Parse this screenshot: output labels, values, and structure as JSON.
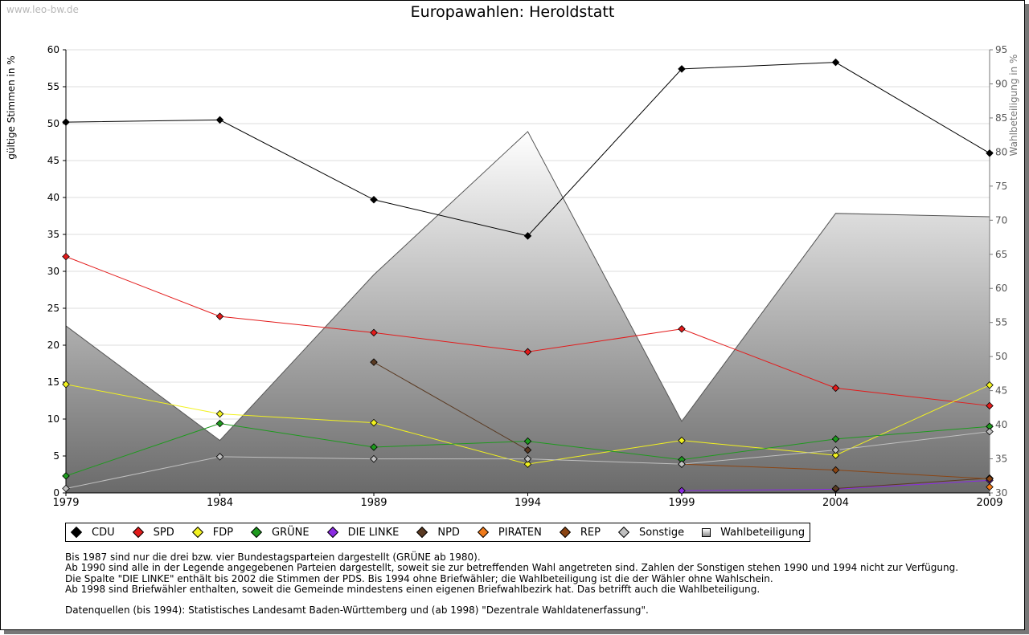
{
  "watermark": "www.leo-bw.de",
  "chart_data": {
    "type": "line",
    "title": "Europawahlen: Heroldstatt",
    "ylabel": "gültige Stimmen in %",
    "y2label": "Wahlbeteiligung in %",
    "x": [
      "1979",
      "1984",
      "1989",
      "1994",
      "1999",
      "2004",
      "2009"
    ],
    "ylim": [
      0,
      60
    ],
    "yticks": [
      "0",
      "5",
      "10",
      "15",
      "20",
      "25",
      "30",
      "35",
      "40",
      "45",
      "50",
      "55",
      "60"
    ],
    "y2lim": [
      30,
      95
    ],
    "y2ticks": [
      "30",
      "35",
      "40",
      "45",
      "50",
      "55",
      "60",
      "65",
      "70",
      "75",
      "80",
      "85",
      "90",
      "95"
    ],
    "grid": true,
    "series": [
      {
        "name": "CDU",
        "color": "#000000",
        "values": [
          50.2,
          50.5,
          39.7,
          34.8,
          57.4,
          58.3,
          46.0
        ]
      },
      {
        "name": "SPD",
        "color": "#e31b1b",
        "values": [
          32.0,
          23.9,
          21.7,
          19.1,
          22.2,
          14.2,
          11.8
        ]
      },
      {
        "name": "FDP",
        "color": "#f2f21f",
        "values": [
          14.7,
          10.7,
          9.5,
          3.9,
          7.1,
          5.1,
          14.6
        ]
      },
      {
        "name": "GRÜNE",
        "color": "#1e9a1e",
        "values": [
          2.3,
          9.4,
          6.2,
          7.0,
          4.5,
          7.3,
          9.0
        ]
      },
      {
        "name": "DIE LINKE",
        "color": "#8b2be2",
        "values": [
          null,
          null,
          null,
          null,
          0.3,
          0.5,
          1.7
        ]
      },
      {
        "name": "NPD",
        "color": "#5a3a22",
        "values": [
          null,
          null,
          17.7,
          5.8,
          null,
          0.6,
          2.0
        ]
      },
      {
        "name": "PIRATEN",
        "color": "#f07a1a",
        "values": [
          null,
          null,
          null,
          null,
          null,
          null,
          0.8
        ]
      },
      {
        "name": "REP",
        "color": "#8b4513",
        "values": [
          null,
          null,
          null,
          null,
          3.9,
          3.1,
          1.9
        ]
      },
      {
        "name": "Sonstige",
        "color": "#c0c0c0",
        "values": [
          0.6,
          4.9,
          4.6,
          4.6,
          3.9,
          5.8,
          8.3
        ]
      }
    ],
    "turnout": {
      "name": "Wahlbeteiligung",
      "values": [
        54.5,
        37.7,
        62.0,
        83.0,
        40.5,
        71.0,
        70.5
      ]
    }
  },
  "notes": [
    "Bis 1987 sind nur die drei bzw. vier Bundestagsparteien dargestellt (GRÜNE ab 1980).",
    "Ab 1990 sind alle in der Legende angegebenen Parteien dargestellt, soweit sie zur betreffenden Wahl angetreten sind. Zahlen der Sonstigen stehen 1990 und 1994 nicht zur Verfügung.",
    "Die Spalte \"DIE LINKE\" enthält bis 2002 die Stimmen der PDS. Bis 1994 ohne Briefwähler; die Wahlbeteiligung ist die der Wähler ohne Wahlschein.",
    "Ab 1998 sind Briefwähler enthalten, soweit die Gemeinde mindestens einen eigenen Briefwahlbezirk hat. Das betrifft auch die Wahlbeteiligung."
  ],
  "source": "Datenquellen (bis 1994): Statistisches Landesamt Baden-Württemberg und (ab 1998) \"Dezentrale Wahldatenerfassung\"."
}
